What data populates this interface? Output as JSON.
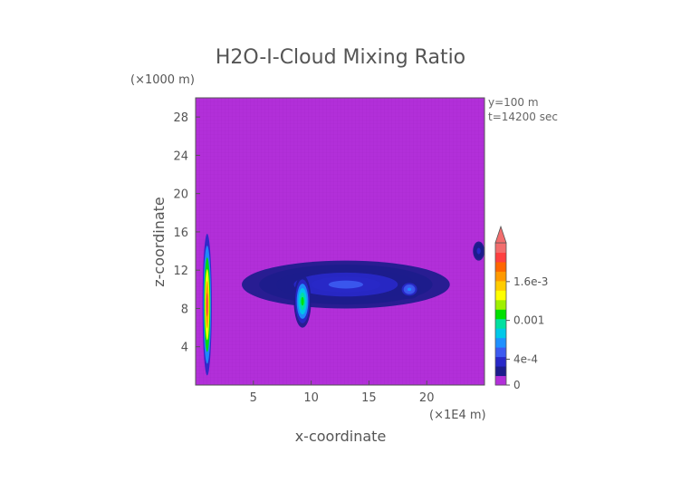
{
  "chart_data": {
    "type": "heatmap",
    "title": "H2O-I-Cloud Mixing Ratio",
    "xlabel": "x-coordinate",
    "ylabel": "z-coordinate",
    "x_unit": "(×1E4 m)",
    "y_unit": "(×1000 m)",
    "annotations": [
      "y=100 m",
      "t=14200 sec"
    ],
    "xlim": [
      0,
      25
    ],
    "ylim": [
      0,
      30
    ],
    "x_ticks": [
      5,
      10,
      15,
      20
    ],
    "y_ticks": [
      4,
      8,
      12,
      16,
      20,
      24,
      28
    ],
    "grid": false,
    "colorbar": {
      "position": "right",
      "range": [
        0,
        0.0022
      ],
      "labels": [
        "0",
        "4e-4",
        "0.001",
        "1.6e-3"
      ],
      "label_values": [
        0,
        0.0004,
        0.001,
        0.0016
      ],
      "colors": [
        "#b22fd9",
        "#1c1c8c",
        "#2828c8",
        "#3c5af0",
        "#1e90ff",
        "#00c8e8",
        "#00e0a0",
        "#00e000",
        "#a0f000",
        "#ffff00",
        "#ffcc00",
        "#ff9900",
        "#ff6600",
        "#ff4040",
        "#f26d6d"
      ],
      "extend": "max"
    },
    "background_value": 0,
    "cloud_regions": [
      {
        "name": "tall column",
        "x": [
          0.6,
          1.4
        ],
        "z": [
          1.0,
          15.8
        ],
        "peak": 0.0021
      },
      {
        "name": "upper anvil",
        "x": [
          4.0,
          22.0
        ],
        "z": [
          8.0,
          13.0
        ],
        "peak": 0.0004
      },
      {
        "name": "central core",
        "x": [
          8.5,
          10.0
        ],
        "z": [
          6.0,
          11.5
        ],
        "peak": 0.0011
      },
      {
        "name": "right cell",
        "x": [
          17.5,
          19.5
        ],
        "z": [
          9.0,
          11.0
        ],
        "peak": 0.0006
      },
      {
        "name": "far right",
        "x": [
          24.0,
          25.0
        ],
        "z": [
          13.0,
          15.0
        ],
        "peak": 0.0003
      }
    ]
  }
}
